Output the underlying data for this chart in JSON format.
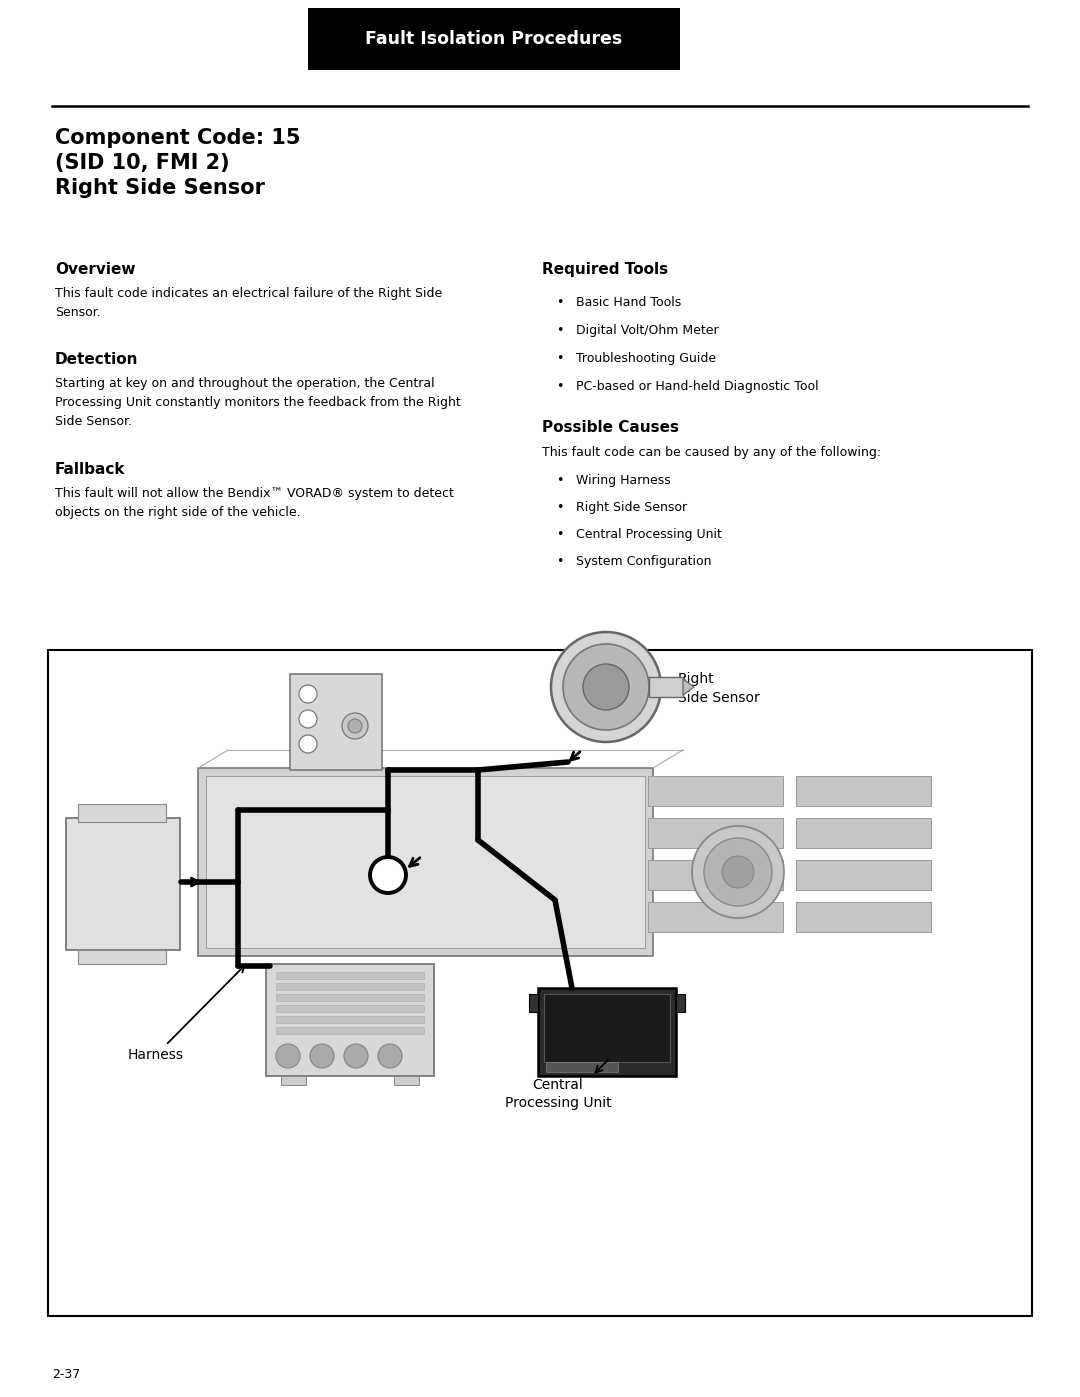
{
  "page_bg": "#ffffff",
  "header_bg": "#000000",
  "header_text": "Fault Isolation Procedures",
  "header_text_color": "#ffffff",
  "title_line1": "Component Code: 15",
  "title_line2": "(SID 10, FMI 2)",
  "title_line3": "Right Side Sensor",
  "left_sections": [
    {
      "heading": "Overview",
      "body": "This fault code indicates an electrical failure of the Right Side\nSensor."
    },
    {
      "heading": "Detection",
      "body": "Starting at key on and throughout the operation, the Central\nProcessing Unit constantly monitors the feedback from the Right\nSide Sensor."
    },
    {
      "heading": "Fallback",
      "body": "This fault will not allow the Bendix™ VORAD® system to detect\nobjects on the right side of the vehicle."
    }
  ],
  "tools_heading": "Required Tools",
  "tools_items": [
    "Basic Hand Tools",
    "Digital Volt/Ohm Meter",
    "Troubleshooting Guide",
    "PC-based or Hand-held Diagnostic Tool"
  ],
  "causes_heading": "Possible Causes",
  "causes_intro": "This fault code can be caused by any of the following:",
  "causes_items": [
    "Wiring Harness",
    "Right Side Sensor",
    "Central Processing Unit",
    "System Configuration"
  ],
  "diagram_harness": "Harness",
  "diagram_right_sensor": "Right\nSide Sensor",
  "diagram_cpu": "Central\nProcessing Unit",
  "page_number": "2-37"
}
